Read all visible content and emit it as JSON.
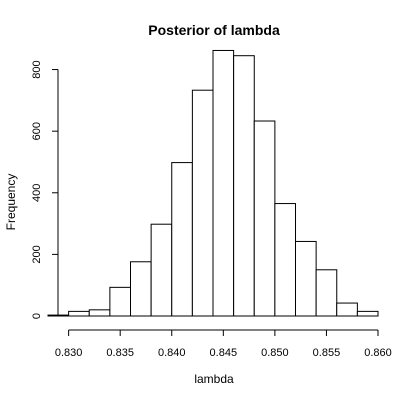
{
  "chart_data": {
    "type": "bar",
    "title": "Posterior of lambda",
    "xlabel": "lambda",
    "ylabel": "Frequency",
    "x_ticks": [
      0.83,
      0.835,
      0.84,
      0.845,
      0.85,
      0.855,
      0.86
    ],
    "x_tick_labels": [
      "0.830",
      "0.835",
      "0.840",
      "0.845",
      "0.850",
      "0.855",
      "0.860"
    ],
    "y_ticks": [
      0,
      200,
      400,
      600,
      800
    ],
    "y_tick_labels": [
      "0",
      "200",
      "400",
      "600",
      "800"
    ],
    "xlim": [
      0.828,
      0.86
    ],
    "ylim": [
      0,
      870
    ],
    "grid": false,
    "bins": [
      {
        "start": 0.828,
        "end": 0.83,
        "value": 3
      },
      {
        "start": 0.83,
        "end": 0.832,
        "value": 15
      },
      {
        "start": 0.832,
        "end": 0.834,
        "value": 20
      },
      {
        "start": 0.834,
        "end": 0.836,
        "value": 93
      },
      {
        "start": 0.836,
        "end": 0.838,
        "value": 176
      },
      {
        "start": 0.838,
        "end": 0.84,
        "value": 298
      },
      {
        "start": 0.84,
        "end": 0.842,
        "value": 498
      },
      {
        "start": 0.842,
        "end": 0.844,
        "value": 733
      },
      {
        "start": 0.844,
        "end": 0.846,
        "value": 862
      },
      {
        "start": 0.846,
        "end": 0.848,
        "value": 845
      },
      {
        "start": 0.848,
        "end": 0.85,
        "value": 633
      },
      {
        "start": 0.85,
        "end": 0.852,
        "value": 365
      },
      {
        "start": 0.852,
        "end": 0.854,
        "value": 242
      },
      {
        "start": 0.854,
        "end": 0.856,
        "value": 150
      },
      {
        "start": 0.856,
        "end": 0.858,
        "value": 42
      },
      {
        "start": 0.858,
        "end": 0.86,
        "value": 15
      }
    ]
  }
}
